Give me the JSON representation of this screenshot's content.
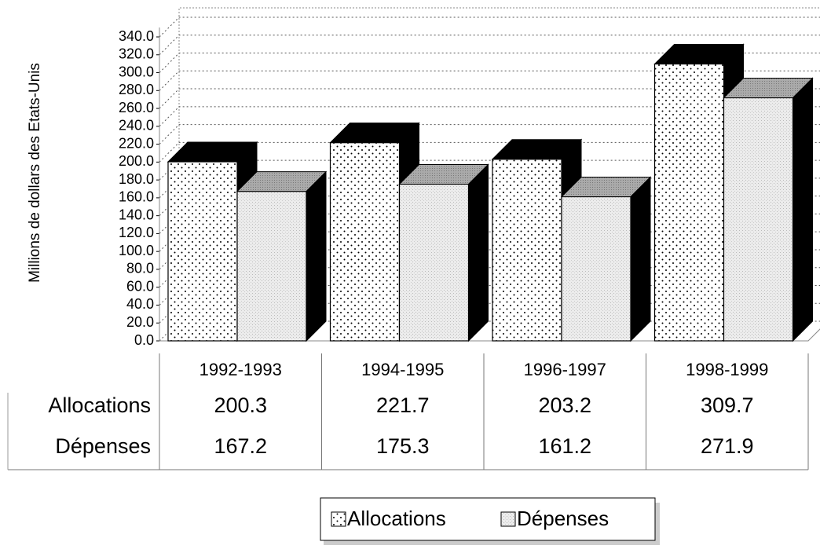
{
  "chart_data": {
    "type": "bar3d",
    "y_label": "Millions de dollars des Etats-Unis",
    "categories": [
      "1992-1993",
      "1994-1995",
      "1996-1997",
      "1998-1999"
    ],
    "series": [
      {
        "name": "Allocations",
        "color": "#ffffff",
        "values": [
          200.3,
          221.7,
          203.2,
          309.7
        ]
      },
      {
        "name": "Dépenses",
        "color": "#e6e6e6",
        "values": [
          167.2,
          175.3,
          161.2,
          271.9
        ]
      }
    ],
    "ylim": [
      0,
      340
    ],
    "yticks": [
      {
        "value": 0,
        "label": "0.0"
      },
      {
        "value": 20,
        "label": "20.0"
      },
      {
        "value": 40,
        "label": "40.0"
      },
      {
        "value": 60,
        "label": "60.0"
      },
      {
        "value": 80,
        "label": "80.0"
      },
      {
        "value": 100,
        "label": "100.0"
      },
      {
        "value": 120,
        "label": "120.0"
      },
      {
        "value": 140,
        "label": "140.0"
      },
      {
        "value": 160,
        "label": "160.0"
      },
      {
        "value": 180,
        "label": "180.0"
      },
      {
        "value": 200,
        "label": "200.0"
      },
      {
        "value": 220,
        "label": "220.0"
      },
      {
        "value": 240,
        "label": "240.0"
      },
      {
        "value": 260,
        "label": "260.0"
      },
      {
        "value": 280,
        "label": "280.0"
      },
      {
        "value": 300,
        "label": "300.0"
      },
      {
        "value": 320,
        "label": "320.0"
      },
      {
        "value": 340,
        "label": "340.0"
      }
    ],
    "grid": true,
    "data_table": true,
    "legend": "bottom"
  }
}
